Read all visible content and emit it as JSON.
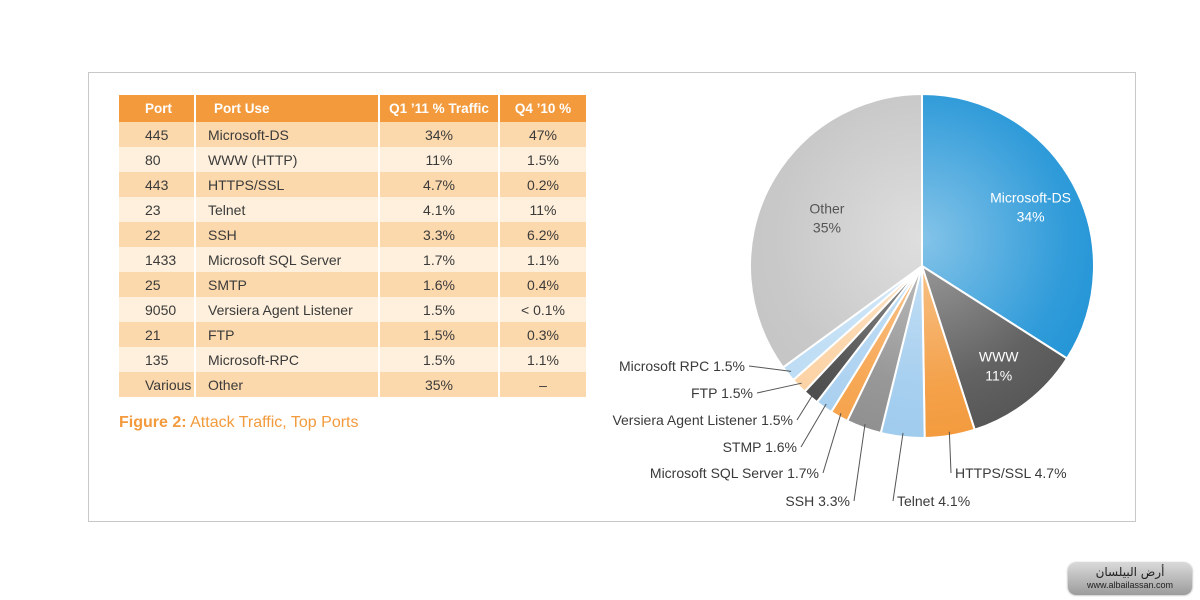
{
  "table": {
    "headers": {
      "port": "Port",
      "use": "Port Use",
      "q1": "Q1 ’11 % Traffic",
      "q4": "Q4 ’10 %"
    },
    "rows": [
      {
        "port": "445",
        "use": "Microsoft-DS",
        "q1": "34%",
        "q4": "47%"
      },
      {
        "port": "80",
        "use": "WWW (HTTP)",
        "q1": "11%",
        "q4": "1.5%"
      },
      {
        "port": "443",
        "use": "HTTPS/SSL",
        "q1": "4.7%",
        "q4": "0.2%"
      },
      {
        "port": "23",
        "use": "Telnet",
        "q1": "4.1%",
        "q4": "11%"
      },
      {
        "port": "22",
        "use": "SSH",
        "q1": "3.3%",
        "q4": "6.2%"
      },
      {
        "port": "1433",
        "use": "Microsoft SQL Server",
        "q1": "1.7%",
        "q4": "1.1%"
      },
      {
        "port": "25",
        "use": "SMTP",
        "q1": "1.6%",
        "q4": "0.4%"
      },
      {
        "port": "9050",
        "use": "Versiera Agent Listener",
        "q1": "1.5%",
        "q4": "< 0.1%"
      },
      {
        "port": "21",
        "use": "FTP",
        "q1": "1.5%",
        "q4": "0.3%"
      },
      {
        "port": "135",
        "use": "Microsoft-RPC",
        "q1": "1.5%",
        "q4": "1.1%"
      },
      {
        "port": "Various",
        "use": "Other",
        "q1": "35%",
        "q4": "–"
      }
    ]
  },
  "caption": {
    "label": "Figure 2:",
    "text": " Attack Traffic, Top Ports"
  },
  "chart_data": {
    "type": "pie",
    "slices": [
      {
        "label": "Microsoft-DS",
        "value": 34,
        "display": "34%",
        "color": "#1f93d6",
        "placement": "inside"
      },
      {
        "label": "WWW",
        "value": 11,
        "display": "11%",
        "color": "#555555",
        "placement": "inside"
      },
      {
        "label": "HTTPS/SSL",
        "value": 4.7,
        "display": "HTTPS/SSL 4.7%",
        "color": "#f39a3c",
        "placement": "callout"
      },
      {
        "label": "Telnet",
        "value": 4.1,
        "display": "Telnet 4.1%",
        "color": "#9fcbee",
        "placement": "callout"
      },
      {
        "label": "SSH",
        "value": 3.3,
        "display": "SSH 3.3%",
        "color": "#8f8f8f",
        "placement": "callout"
      },
      {
        "label": "Microsoft SQL Server",
        "value": 1.7,
        "display": "Microsoft SQL Server 1.7%",
        "color": "#f6a24a",
        "placement": "callout"
      },
      {
        "label": "STMP",
        "value": 1.6,
        "display": "STMP 1.6%",
        "color": "#a9d0f0",
        "placement": "callout"
      },
      {
        "label": "Versiera Agent Listener",
        "value": 1.5,
        "display": "Versiera Agent Listener 1.5%",
        "color": "#4a4a4a",
        "placement": "callout"
      },
      {
        "label": "FTP",
        "value": 1.5,
        "display": "FTP 1.5%",
        "color": "#fcd2a4",
        "placement": "callout"
      },
      {
        "label": "Microsoft RPC",
        "value": 1.5,
        "display": "Microsoft RPC 1.5%",
        "color": "#bcdcf4",
        "placement": "callout"
      },
      {
        "label": "Other",
        "value": 35,
        "display": "35%",
        "color": "#c4c4c4",
        "placement": "inside"
      }
    ]
  },
  "watermark": {
    "top": "أرض البيلسان",
    "url": "www.albailassan.com"
  }
}
